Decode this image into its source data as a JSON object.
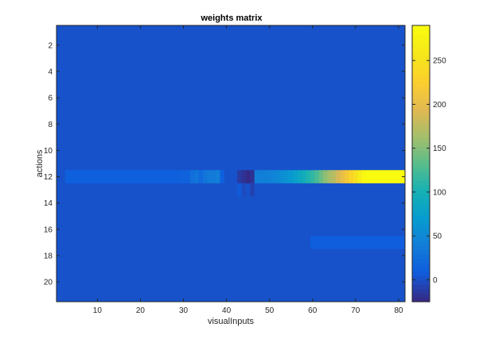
{
  "chart_data": {
    "type": "heatmap",
    "title": "weights matrix",
    "xlabel": "visualInputs",
    "ylabel": "actions",
    "n_cols": 81,
    "n_rows": 21,
    "x_ticks": [
      10,
      20,
      30,
      40,
      50,
      60,
      70,
      80
    ],
    "y_ticks": [
      2,
      4,
      6,
      8,
      10,
      12,
      14,
      16,
      18,
      20
    ],
    "colorbar_ticks": [
      0,
      50,
      100,
      150,
      200,
      250
    ],
    "color_limits": [
      -25,
      290
    ],
    "colormap": "parula",
    "background_value": 0,
    "row_12_values": [
      0,
      0,
      10,
      10,
      10,
      10,
      10,
      10,
      10,
      10,
      10,
      10,
      10,
      10,
      10,
      10,
      10,
      10,
      10,
      10,
      10,
      10,
      10,
      10,
      10,
      10,
      10,
      10,
      10,
      12,
      12,
      25,
      30,
      20,
      30,
      35,
      35,
      40,
      10,
      0,
      0,
      0,
      -15,
      -20,
      -25,
      -20,
      40,
      40,
      40,
      42,
      45,
      50,
      55,
      60,
      65,
      75,
      85,
      95,
      105,
      115,
      125,
      140,
      155,
      165,
      175,
      190,
      205,
      220,
      235,
      250,
      270,
      285,
      290,
      290,
      290,
      290,
      290,
      290,
      290,
      290,
      290
    ],
    "other_cells": [
      {
        "row": 13,
        "col": 43,
        "value": 5
      },
      {
        "row": 13,
        "col": 44,
        "value": -5
      },
      {
        "row": 13,
        "col": 46,
        "value": -10
      },
      {
        "row": 17,
        "col_start": 60,
        "col_end": 81,
        "value": 8
      }
    ]
  }
}
